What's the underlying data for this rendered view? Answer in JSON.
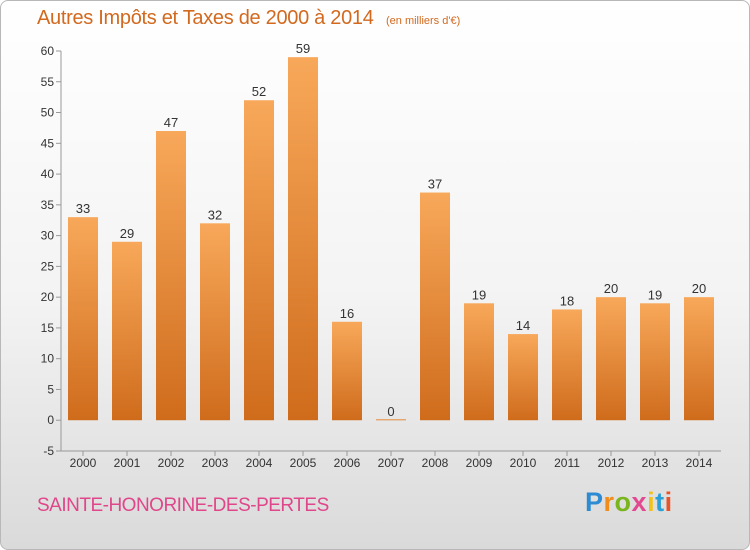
{
  "header": {
    "title": "Autres Impôts et Taxes de 2000 à 2014",
    "subtitle": "(en milliers d'€)"
  },
  "footer": {
    "commune": "SAINTE-HONORINE-DES-PERTES",
    "logo": [
      "P",
      "r",
      "o",
      "x",
      "i",
      "t",
      "i"
    ]
  },
  "colors": {
    "bar_light": "#f8a85a",
    "bar_dark": "#cf6c1c",
    "title": "#d2691e",
    "commune": "#e0468a"
  },
  "chart_data": {
    "type": "bar",
    "title": "Autres Impôts et Taxes de 2000 à 2014",
    "subtitle": "(en milliers d'€)",
    "categories": [
      "2000",
      "2001",
      "2002",
      "2003",
      "2004",
      "2005",
      "2006",
      "2007",
      "2008",
      "2009",
      "2010",
      "2011",
      "2012",
      "2013",
      "2014"
    ],
    "values": [
      33,
      29,
      47,
      32,
      52,
      59,
      16,
      0,
      37,
      19,
      14,
      18,
      20,
      19,
      20
    ],
    "ylim": [
      -5,
      60
    ],
    "yticks": [
      -5,
      0,
      5,
      10,
      15,
      20,
      25,
      30,
      35,
      40,
      45,
      50,
      55,
      60
    ],
    "grid": false,
    "legend": "none",
    "xlabel": "",
    "ylabel": ""
  }
}
